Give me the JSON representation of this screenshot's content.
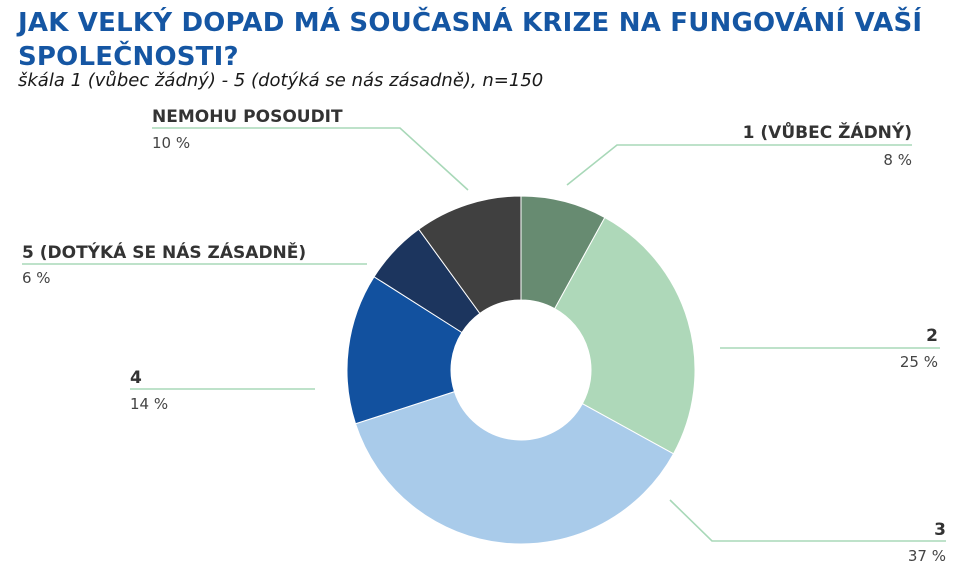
{
  "header": {
    "title": "JAK VELKÝ DOPAD MÁ SOUČASNÁ KRIZE NA FUNGOVÁNÍ VAŠÍ SPOLEČNOSTI?",
    "subtitle": "škála 1 (vůbec žádný) - 5 (dotýká se nás zásadně), n=150"
  },
  "chart_data": {
    "type": "pie",
    "donut": true,
    "categories": [
      "1 (VŮBEC ŽÁDNÝ)",
      "2",
      "3",
      "4",
      "5 (DOTÝKÁ SE NÁS ZÁSADNĚ)",
      "NEMOHU POSOUDIT"
    ],
    "values": [
      8,
      25,
      37,
      14,
      6,
      10
    ],
    "value_labels": [
      "8 %",
      "25 %",
      "37 %",
      "14 %",
      "6 %",
      "10 %"
    ],
    "colors": [
      "#678b71",
      "#aed8b9",
      "#a9cbea",
      "#12519f",
      "#1c355e",
      "#404040"
    ],
    "start": "top, clockwise"
  }
}
